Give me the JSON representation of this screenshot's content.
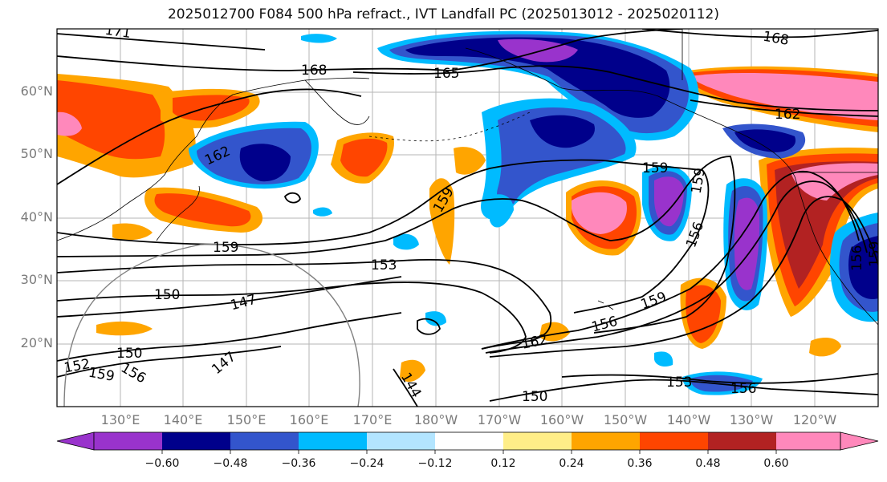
{
  "title": "2025012700 F084 500 hPa refract., IVT Landfall PC (2025013012 - 2025020112)",
  "map": {
    "latitude_labels": [
      "60°N",
      "50°N",
      "40°N",
      "30°N",
      "20°N"
    ],
    "longitude_labels": [
      "130°E",
      "140°E",
      "150°E",
      "160°E",
      "170°E",
      "180°W",
      "170°W",
      "160°W",
      "150°W",
      "140°W",
      "130°W",
      "120°W"
    ],
    "contour_labels": [
      "171",
      "168",
      "165",
      "168",
      "162",
      "162",
      "159",
      "159",
      "153",
      "150",
      "147",
      "159",
      "156",
      "159",
      "162",
      "156",
      "159",
      "150",
      "153",
      "156",
      "150",
      "147",
      "144",
      "152",
      "159",
      "156",
      "159",
      "156"
    ]
  },
  "colorbar": {
    "ticks": [
      "−0.60",
      "−0.48",
      "−0.36",
      "−0.24",
      "−0.12",
      "0.12",
      "0.24",
      "0.36",
      "0.48",
      "0.60"
    ],
    "colors": [
      "#9933cc",
      "#00008b",
      "#3355cc",
      "#00bbff",
      "#b3e5ff",
      "#ffffff",
      "#ffee88",
      "#ffa500",
      "#ff4500",
      "#b22222",
      "#ff88bb"
    ]
  }
}
